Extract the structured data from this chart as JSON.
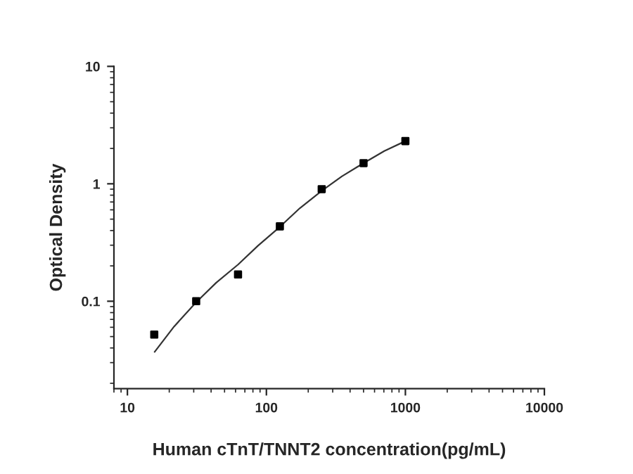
{
  "chart_data": {
    "type": "scatter",
    "xlabel": "Human cTnT/TNNT2 concentration(pg/mL)",
    "ylabel": "Optical Density",
    "log": "xy",
    "grid": false,
    "marker": "square",
    "xlim": [
      8,
      10000
    ],
    "xticks": [
      10,
      100,
      1000,
      10000
    ],
    "ylim": [
      0.018,
      10
    ],
    "yticks": [
      0.1,
      1,
      10
    ],
    "series": [
      {
        "color": "#000000",
        "x": [
          15.6,
          31.25,
          62.5,
          125,
          250,
          500,
          1000
        ],
        "values": [
          0.052,
          0.1,
          0.169,
          0.434,
          0.9,
          1.5,
          2.31
        ]
      },
      {
        "type": "line",
        "color": "#333333",
        "marker": "none",
        "line_style": "solid",
        "x": [
          15.7,
          21.7,
          31.25,
          43.6,
          62.5,
          87,
          125,
          174,
          250,
          350,
          500,
          705,
          1000
        ],
        "values": [
          0.037,
          0.061,
          0.098,
          0.144,
          0.205,
          0.297,
          0.43,
          0.62,
          0.87,
          1.16,
          1.5,
          1.9,
          2.31
        ]
      }
    ]
  }
}
